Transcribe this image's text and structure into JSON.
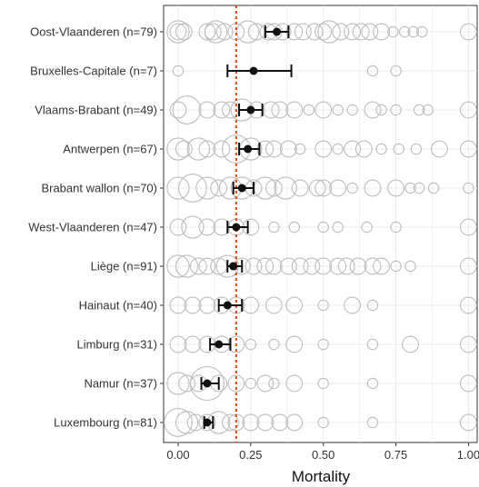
{
  "chart_data": {
    "type": "scatter",
    "title": "",
    "xlabel": "Mortality",
    "ylabel": "",
    "xlim": [
      -0.05,
      1.03
    ],
    "xticks": [
      0.0,
      0.25,
      0.5,
      0.75,
      1.0
    ],
    "xtick_labels": [
      "0.00",
      "0.25",
      "0.50",
      "0.75",
      "1.00"
    ],
    "grid": true,
    "reference_line": {
      "x": 0.2,
      "style": "dotted",
      "color": "#d9541e"
    },
    "colors": {
      "estimate": "#111111",
      "raw_points": "#bdbdbd",
      "reference": "#d9541e"
    },
    "categories": [
      "Oost-Vlaanderen (n=79)",
      "Bruxelles-Capitale (n=7)",
      "Vlaams-Brabant (n=49)",
      "Antwerpen (n=67)",
      "Brabant wallon (n=70)",
      "West-Vlaanderen (n=47)",
      "Liège (n=91)",
      "Hainaut (n=40)",
      "Limburg (n=31)",
      "Namur (n=37)",
      "Luxembourg (n=81)"
    ],
    "estimates": [
      {
        "region": "Oost-Vlaanderen (n=79)",
        "mean": 0.34,
        "lower": 0.3,
        "upper": 0.38
      },
      {
        "region": "Bruxelles-Capitale (n=7)",
        "mean": 0.26,
        "lower": 0.17,
        "upper": 0.39
      },
      {
        "region": "Vlaams-Brabant (n=49)",
        "mean": 0.25,
        "lower": 0.21,
        "upper": 0.29
      },
      {
        "region": "Antwerpen (n=67)",
        "mean": 0.24,
        "lower": 0.21,
        "upper": 0.28
      },
      {
        "region": "Brabant wallon (n=70)",
        "mean": 0.22,
        "lower": 0.19,
        "upper": 0.26
      },
      {
        "region": "West-Vlaanderen (n=47)",
        "mean": 0.2,
        "lower": 0.17,
        "upper": 0.24
      },
      {
        "region": "Liège (n=91)",
        "mean": 0.19,
        "lower": 0.17,
        "upper": 0.22
      },
      {
        "region": "Hainaut (n=40)",
        "mean": 0.17,
        "lower": 0.14,
        "upper": 0.22
      },
      {
        "region": "Limburg (n=31)",
        "mean": 0.14,
        "lower": 0.11,
        "upper": 0.18
      },
      {
        "region": "Namur (n=37)",
        "mean": 0.1,
        "lower": 0.08,
        "upper": 0.14
      },
      {
        "region": "Luxembourg (n=81)",
        "mean": 0.1,
        "lower": 0.09,
        "upper": 0.12
      }
    ],
    "raw_points": [
      {
        "region": "Oost-Vlaanderen (n=79)",
        "points": [
          [
            0,
            3
          ],
          [
            0,
            2
          ],
          [
            0.02,
            2
          ],
          [
            0.1,
            2
          ],
          [
            0.12,
            2
          ],
          [
            0.13,
            3
          ],
          [
            0.16,
            2
          ],
          [
            0.2,
            2
          ],
          [
            0.24,
            3
          ],
          [
            0.27,
            2
          ],
          [
            0.31,
            2
          ],
          [
            0.33,
            2
          ],
          [
            0.36,
            2
          ],
          [
            0.4,
            2
          ],
          [
            0.43,
            2
          ],
          [
            0.47,
            2
          ],
          [
            0.5,
            2
          ],
          [
            0.52,
            3
          ],
          [
            0.56,
            2
          ],
          [
            0.6,
            2
          ],
          [
            0.63,
            2
          ],
          [
            0.66,
            2
          ],
          [
            0.7,
            2
          ],
          [
            0.74,
            1
          ],
          [
            0.78,
            1
          ],
          [
            0.81,
            1
          ],
          [
            0.84,
            1
          ],
          [
            1.0,
            2
          ]
        ]
      },
      {
        "region": "Bruxelles-Capitale (n=7)",
        "points": [
          [
            0,
            1
          ],
          [
            0.67,
            1
          ],
          [
            0.75,
            1
          ]
        ]
      },
      {
        "region": "Vlaams-Brabant (n=49)",
        "points": [
          [
            0,
            2
          ],
          [
            0.03,
            4
          ],
          [
            0.1,
            2
          ],
          [
            0.15,
            2
          ],
          [
            0.18,
            2
          ],
          [
            0.22,
            3
          ],
          [
            0.27,
            2
          ],
          [
            0.32,
            2
          ],
          [
            0.35,
            2
          ],
          [
            0.4,
            2
          ],
          [
            0.45,
            1
          ],
          [
            0.5,
            2
          ],
          [
            0.55,
            1
          ],
          [
            0.6,
            1
          ],
          [
            0.67,
            2
          ],
          [
            0.7,
            1
          ],
          [
            0.75,
            1
          ],
          [
            0.83,
            1
          ],
          [
            0.86,
            1
          ],
          [
            1.0,
            2
          ]
        ]
      },
      {
        "region": "Antwerpen (n=67)",
        "points": [
          [
            0,
            3
          ],
          [
            0.02,
            2
          ],
          [
            0.07,
            3
          ],
          [
            0.1,
            2
          ],
          [
            0.15,
            2
          ],
          [
            0.2,
            4
          ],
          [
            0.25,
            3
          ],
          [
            0.3,
            2
          ],
          [
            0.33,
            2
          ],
          [
            0.38,
            2
          ],
          [
            0.42,
            1
          ],
          [
            0.5,
            2
          ],
          [
            0.55,
            1
          ],
          [
            0.6,
            2
          ],
          [
            0.64,
            2
          ],
          [
            0.7,
            1
          ],
          [
            0.76,
            1
          ],
          [
            0.82,
            1
          ],
          [
            0.9,
            2
          ],
          [
            1.0,
            2
          ]
        ]
      },
      {
        "region": "Brabant wallon (n=70)",
        "points": [
          [
            0,
            3
          ],
          [
            0.05,
            4
          ],
          [
            0.1,
            3
          ],
          [
            0.14,
            2
          ],
          [
            0.18,
            3
          ],
          [
            0.22,
            3
          ],
          [
            0.26,
            2
          ],
          [
            0.3,
            3
          ],
          [
            0.33,
            2
          ],
          [
            0.37,
            3
          ],
          [
            0.42,
            2
          ],
          [
            0.48,
            2
          ],
          [
            0.5,
            2
          ],
          [
            0.55,
            2
          ],
          [
            0.6,
            1
          ],
          [
            0.67,
            2
          ],
          [
            0.75,
            2
          ],
          [
            0.8,
            1
          ],
          [
            0.83,
            1
          ],
          [
            0.88,
            1
          ],
          [
            1.0,
            1
          ]
        ]
      },
      {
        "region": "West-Vlaanderen (n=47)",
        "points": [
          [
            0,
            2
          ],
          [
            0.05,
            3
          ],
          [
            0.1,
            2
          ],
          [
            0.15,
            2
          ],
          [
            0.2,
            2
          ],
          [
            0.25,
            2
          ],
          [
            0.33,
            1
          ],
          [
            0.4,
            1
          ],
          [
            0.5,
            1
          ],
          [
            0.55,
            1
          ],
          [
            0.65,
            1
          ],
          [
            0.75,
            1
          ],
          [
            1.0,
            2
          ]
        ]
      },
      {
        "region": "Liège (n=91)",
        "points": [
          [
            0,
            3
          ],
          [
            0.03,
            3
          ],
          [
            0.07,
            2
          ],
          [
            0.1,
            2
          ],
          [
            0.14,
            2
          ],
          [
            0.17,
            3
          ],
          [
            0.22,
            2
          ],
          [
            0.26,
            2
          ],
          [
            0.3,
            2
          ],
          [
            0.33,
            2
          ],
          [
            0.38,
            2
          ],
          [
            0.42,
            2
          ],
          [
            0.46,
            2
          ],
          [
            0.5,
            2
          ],
          [
            0.55,
            2
          ],
          [
            0.58,
            2
          ],
          [
            0.62,
            2
          ],
          [
            0.67,
            2
          ],
          [
            0.7,
            2
          ],
          [
            0.75,
            1
          ],
          [
            0.8,
            1
          ],
          [
            1.0,
            2
          ]
        ]
      },
      {
        "region": "Hainaut (n=40)",
        "points": [
          [
            0,
            2
          ],
          [
            0.05,
            2
          ],
          [
            0.1,
            2
          ],
          [
            0.15,
            2
          ],
          [
            0.2,
            2
          ],
          [
            0.25,
            2
          ],
          [
            0.33,
            2
          ],
          [
            0.4,
            2
          ],
          [
            0.5,
            1
          ],
          [
            0.6,
            2
          ],
          [
            0.67,
            1
          ],
          [
            1.0,
            2
          ]
        ]
      },
      {
        "region": "Limburg (n=31)",
        "points": [
          [
            0,
            2
          ],
          [
            0.05,
            2
          ],
          [
            0.1,
            2
          ],
          [
            0.15,
            2
          ],
          [
            0.2,
            2
          ],
          [
            0.25,
            1
          ],
          [
            0.33,
            1
          ],
          [
            0.4,
            2
          ],
          [
            0.5,
            1
          ],
          [
            0.67,
            1
          ],
          [
            0.8,
            2
          ],
          [
            1.0,
            2
          ]
        ]
      },
      {
        "region": "Namur (n=37)",
        "points": [
          [
            0,
            3
          ],
          [
            0.03,
            2
          ],
          [
            0.07,
            2
          ],
          [
            0.1,
            5
          ],
          [
            0.14,
            2
          ],
          [
            0.2,
            2
          ],
          [
            0.25,
            1
          ],
          [
            0.3,
            2
          ],
          [
            0.33,
            1
          ],
          [
            0.4,
            2
          ],
          [
            0.5,
            1
          ],
          [
            0.67,
            1
          ],
          [
            1.0,
            2
          ]
        ]
      },
      {
        "region": "Luxembourg (n=81)",
        "points": [
          [
            0,
            4
          ],
          [
            0.03,
            3
          ],
          [
            0.06,
            2
          ],
          [
            0.1,
            2
          ],
          [
            0.14,
            3
          ],
          [
            0.18,
            2
          ],
          [
            0.2,
            2
          ],
          [
            0.25,
            2
          ],
          [
            0.3,
            2
          ],
          [
            0.35,
            2
          ],
          [
            0.4,
            2
          ],
          [
            0.5,
            1
          ],
          [
            0.67,
            1
          ],
          [
            1.0,
            2
          ]
        ]
      }
    ]
  }
}
